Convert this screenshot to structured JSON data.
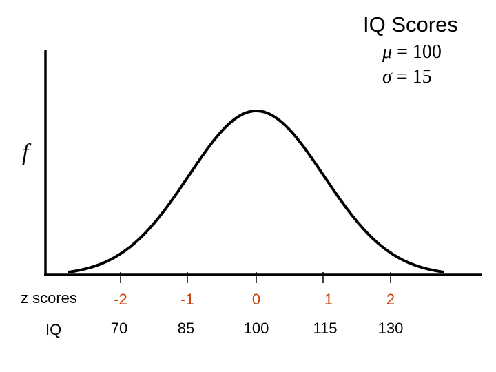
{
  "title": "IQ Scores",
  "mu": {
    "symbol": "μ",
    "text": " = 100"
  },
  "sigma": {
    "symbol": "σ",
    "text": " = 15"
  },
  "f_label": "f",
  "z_row_label": "z scores",
  "iq_row_label": "IQ",
  "z_ticks": [
    "-2",
    "-1",
    "0",
    "1",
    "2"
  ],
  "iq_ticks": [
    "70",
    "85",
    "100",
    "115",
    "130"
  ],
  "colors": {
    "z_tick_color": "#c8400a",
    "curve": "#000000",
    "axes": "#000000"
  }
}
